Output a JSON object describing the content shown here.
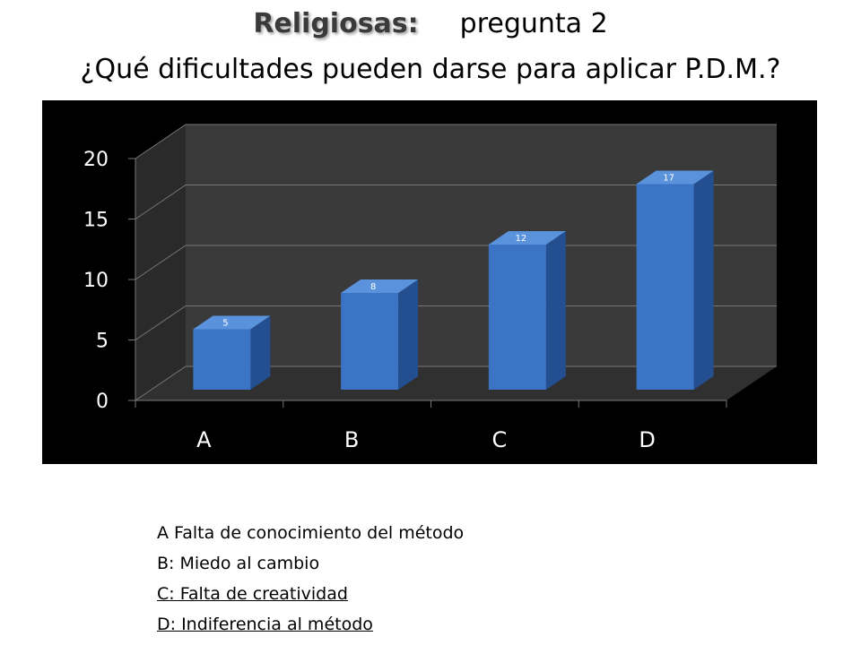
{
  "header": {
    "title_bold": "Religiosas:",
    "title_rest": "pregunta 2",
    "subtitle": "¿Qué dificultades pueden darse para aplicar P.D.M.?"
  },
  "chart_data": {
    "type": "bar",
    "style": "3d-column",
    "categories": [
      "A",
      "B",
      "C",
      "D"
    ],
    "values": [
      5,
      8,
      12,
      17
    ],
    "data_labels": [
      "5",
      "8",
      "12",
      "17"
    ],
    "ylim": [
      0,
      20
    ],
    "yticks": [
      "0",
      "5",
      "10",
      "15",
      "20"
    ],
    "grid": true,
    "legend": "none",
    "colors": {
      "bar_front": "#3b74c4",
      "bar_top": "#5a92dc",
      "bar_side": "#234e8f",
      "background": "#000000",
      "walls": "#3a3a3a",
      "floor": "#303030",
      "gridline": "#777777",
      "text": "#ffffff"
    }
  },
  "legend": {
    "items": [
      "A Falta de conocimiento del método",
      "B: Miedo al cambio",
      "C: Falta de creatividad",
      "D: Indiferencia  al método"
    ]
  }
}
